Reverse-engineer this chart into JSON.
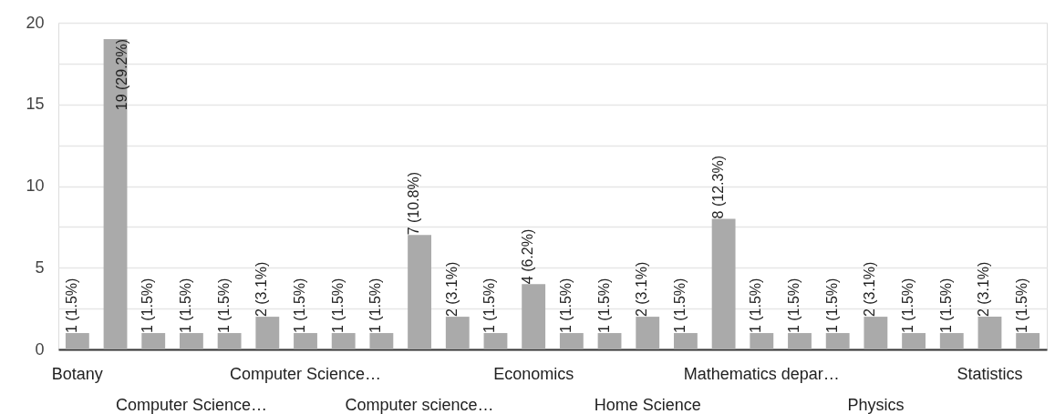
{
  "chart_data": {
    "type": "bar",
    "categories": [
      "Botany",
      null,
      null,
      "Computer Science…",
      null,
      null,
      "Computer Science…",
      null,
      null,
      "Computer science…",
      null,
      null,
      "Economics",
      null,
      null,
      "Home Science",
      null,
      null,
      "Mathematics depar…",
      null,
      null,
      "Physics",
      null,
      null,
      "Statistics",
      null
    ],
    "values": [
      1,
      19,
      1,
      1,
      1,
      2,
      1,
      1,
      1,
      7,
      2,
      1,
      4,
      1,
      1,
      2,
      1,
      8,
      1,
      1,
      1,
      2,
      1,
      1,
      2,
      1
    ],
    "value_labels": [
      "1 (1.5%)",
      "19 (29.2%)",
      "1 (1.5%)",
      "1 (1.5%)",
      "1 (1.5%)",
      "2 (3.1%)",
      "1 (1.5%)",
      "1 (1.5%)",
      "1 (1.5%)",
      "7 (10.8%)",
      "2 (3.1%)",
      "1 (1.5%)",
      "4 (6.2%)",
      "1 (1.5%)",
      "1 (1.5%)",
      "2 (3.1%)",
      "1 (1.5%)",
      "8 (12.3%)",
      "1 (1.5%)",
      "1 (1.5%)",
      "1 (1.5%)",
      "2 (3.1%)",
      "1 (1.5%)",
      "1 (1.5%)",
      "2 (3.1%)",
      "1 (1.5%)"
    ],
    "color": "#aaaaaa",
    "ylim": [
      0,
      20
    ],
    "yticks": [
      0,
      {
        "value": 2.5,
        "label": null
      },
      5,
      {
        "value": 7.5,
        "label": null
      },
      10,
      {
        "value": 12.5,
        "label": null
      },
      15,
      {
        "value": 17.5,
        "label": null
      },
      20
    ],
    "grid": "y"
  }
}
